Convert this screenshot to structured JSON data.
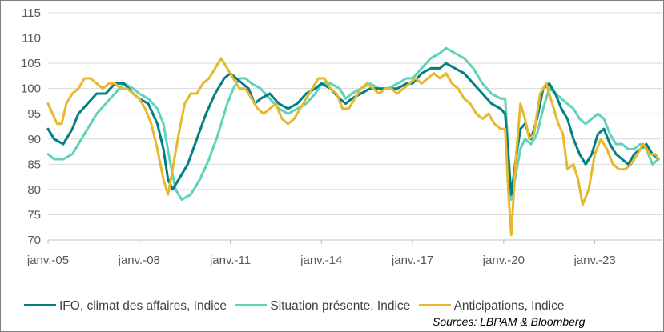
{
  "chart_data": {
    "type": "line",
    "title": "",
    "xlabel": "",
    "ylabel": "",
    "ylim": [
      70,
      115
    ],
    "yticks": [
      70,
      75,
      80,
      85,
      90,
      95,
      100,
      105,
      110,
      115
    ],
    "xlim": [
      2005.0,
      2025.2
    ],
    "xticks": [
      {
        "year": 2005,
        "label": "janv.-05"
      },
      {
        "year": 2008,
        "label": "janv.-08"
      },
      {
        "year": 2011,
        "label": "janv.-11"
      },
      {
        "year": 2014,
        "label": "janv.-14"
      },
      {
        "year": 2017,
        "label": "janv.-17"
      },
      {
        "year": 2020,
        "label": "janv.-20"
      },
      {
        "year": 2023,
        "label": "janv.-23"
      }
    ],
    "grid": true,
    "source": "Sources: LBPAM & Bloomberg",
    "series": [
      {
        "name": "IFO, climat des affaires,  Indice",
        "color": "#008080",
        "points": [
          [
            2005.0,
            92
          ],
          [
            2005.2,
            90
          ],
          [
            2005.5,
            89
          ],
          [
            2005.8,
            92
          ],
          [
            2006.0,
            95
          ],
          [
            2006.3,
            97
          ],
          [
            2006.6,
            99
          ],
          [
            2006.9,
            99
          ],
          [
            2007.2,
            101
          ],
          [
            2007.5,
            101
          ],
          [
            2007.8,
            99
          ],
          [
            2008.0,
            98
          ],
          [
            2008.3,
            97
          ],
          [
            2008.6,
            93
          ],
          [
            2008.8,
            88
          ],
          [
            2008.95,
            82
          ],
          [
            2009.1,
            80
          ],
          [
            2009.3,
            82
          ],
          [
            2009.6,
            85
          ],
          [
            2009.9,
            90
          ],
          [
            2010.2,
            95
          ],
          [
            2010.5,
            99
          ],
          [
            2010.8,
            102
          ],
          [
            2011.0,
            103
          ],
          [
            2011.2,
            102
          ],
          [
            2011.4,
            101
          ],
          [
            2011.6,
            100
          ],
          [
            2011.8,
            97
          ],
          [
            2012.0,
            98
          ],
          [
            2012.3,
            99
          ],
          [
            2012.6,
            97
          ],
          [
            2012.9,
            96
          ],
          [
            2013.2,
            97
          ],
          [
            2013.5,
            99
          ],
          [
            2013.8,
            100
          ],
          [
            2014.0,
            101
          ],
          [
            2014.3,
            100
          ],
          [
            2014.6,
            98
          ],
          [
            2014.8,
            97
          ],
          [
            2015.0,
            98
          ],
          [
            2015.3,
            99
          ],
          [
            2015.6,
            100
          ],
          [
            2015.9,
            100
          ],
          [
            2016.2,
            100
          ],
          [
            2016.5,
            100
          ],
          [
            2016.8,
            101
          ],
          [
            2017.0,
            101
          ],
          [
            2017.3,
            103
          ],
          [
            2017.6,
            104
          ],
          [
            2017.9,
            104
          ],
          [
            2018.1,
            105
          ],
          [
            2018.4,
            104
          ],
          [
            2018.7,
            103
          ],
          [
            2019.0,
            101
          ],
          [
            2019.3,
            99
          ],
          [
            2019.6,
            97
          ],
          [
            2019.9,
            96
          ],
          [
            2020.05,
            95
          ],
          [
            2020.25,
            79
          ],
          [
            2020.4,
            86
          ],
          [
            2020.55,
            92
          ],
          [
            2020.7,
            93
          ],
          [
            2020.9,
            90
          ],
          [
            2021.1,
            94
          ],
          [
            2021.3,
            100
          ],
          [
            2021.5,
            101
          ],
          [
            2021.7,
            99
          ],
          [
            2021.9,
            96
          ],
          [
            2022.1,
            94
          ],
          [
            2022.3,
            90
          ],
          [
            2022.5,
            87
          ],
          [
            2022.7,
            85
          ],
          [
            2022.9,
            87
          ],
          [
            2023.1,
            91
          ],
          [
            2023.3,
            92
          ],
          [
            2023.5,
            89
          ],
          [
            2023.7,
            87
          ],
          [
            2023.9,
            86
          ],
          [
            2024.1,
            85
          ],
          [
            2024.3,
            87
          ],
          [
            2024.5,
            88
          ],
          [
            2024.7,
            89
          ],
          [
            2024.9,
            87
          ],
          [
            2025.1,
            86
          ]
        ]
      },
      {
        "name": "Situation présente, Indice",
        "color": "#5fd3b9",
        "points": [
          [
            2005.0,
            87
          ],
          [
            2005.2,
            86
          ],
          [
            2005.5,
            86
          ],
          [
            2005.8,
            87
          ],
          [
            2006.0,
            89
          ],
          [
            2006.3,
            92
          ],
          [
            2006.6,
            95
          ],
          [
            2006.9,
            97
          ],
          [
            2007.2,
            99
          ],
          [
            2007.5,
            101
          ],
          [
            2007.8,
            100
          ],
          [
            2008.0,
            99
          ],
          [
            2008.3,
            98
          ],
          [
            2008.6,
            96
          ],
          [
            2008.8,
            93
          ],
          [
            2009.0,
            86
          ],
          [
            2009.2,
            80
          ],
          [
            2009.4,
            78
          ],
          [
            2009.7,
            79
          ],
          [
            2010.0,
            82
          ],
          [
            2010.3,
            86
          ],
          [
            2010.6,
            91
          ],
          [
            2010.9,
            97
          ],
          [
            2011.1,
            100
          ],
          [
            2011.3,
            102
          ],
          [
            2011.5,
            102
          ],
          [
            2011.7,
            101
          ],
          [
            2012.0,
            100
          ],
          [
            2012.3,
            98
          ],
          [
            2012.6,
            96
          ],
          [
            2012.9,
            95
          ],
          [
            2013.2,
            96
          ],
          [
            2013.5,
            97
          ],
          [
            2013.8,
            99
          ],
          [
            2014.0,
            101
          ],
          [
            2014.3,
            101
          ],
          [
            2014.6,
            100
          ],
          [
            2014.8,
            98
          ],
          [
            2015.0,
            99
          ],
          [
            2015.3,
            100
          ],
          [
            2015.6,
            101
          ],
          [
            2015.9,
            100
          ],
          [
            2016.2,
            100
          ],
          [
            2016.5,
            101
          ],
          [
            2016.8,
            102
          ],
          [
            2017.0,
            102
          ],
          [
            2017.3,
            104
          ],
          [
            2017.6,
            106
          ],
          [
            2017.9,
            107
          ],
          [
            2018.1,
            108
          ],
          [
            2018.4,
            107
          ],
          [
            2018.7,
            106
          ],
          [
            2019.0,
            104
          ],
          [
            2019.3,
            101
          ],
          [
            2019.6,
            99
          ],
          [
            2019.9,
            98
          ],
          [
            2020.05,
            98
          ],
          [
            2020.25,
            78
          ],
          [
            2020.4,
            83
          ],
          [
            2020.55,
            88
          ],
          [
            2020.7,
            90
          ],
          [
            2020.9,
            89
          ],
          [
            2021.1,
            91
          ],
          [
            2021.3,
            96
          ],
          [
            2021.5,
            100
          ],
          [
            2021.7,
            99
          ],
          [
            2021.9,
            98
          ],
          [
            2022.1,
            97
          ],
          [
            2022.3,
            96
          ],
          [
            2022.5,
            94
          ],
          [
            2022.7,
            93
          ],
          [
            2022.9,
            94
          ],
          [
            2023.1,
            95
          ],
          [
            2023.3,
            94
          ],
          [
            2023.5,
            91
          ],
          [
            2023.7,
            89
          ],
          [
            2023.9,
            89
          ],
          [
            2024.1,
            88
          ],
          [
            2024.3,
            88
          ],
          [
            2024.5,
            89
          ],
          [
            2024.7,
            88
          ],
          [
            2024.9,
            85
          ],
          [
            2025.1,
            86
          ]
        ]
      },
      {
        "name": "Anticipations, Indice",
        "color": "#e6b82e",
        "points": [
          [
            2005.0,
            97
          ],
          [
            2005.15,
            95
          ],
          [
            2005.3,
            93
          ],
          [
            2005.45,
            93
          ],
          [
            2005.6,
            97
          ],
          [
            2005.8,
            99
          ],
          [
            2006.0,
            100
          ],
          [
            2006.2,
            102
          ],
          [
            2006.4,
            102
          ],
          [
            2006.6,
            101
          ],
          [
            2006.8,
            100
          ],
          [
            2007.0,
            101
          ],
          [
            2007.2,
            101
          ],
          [
            2007.4,
            100
          ],
          [
            2007.6,
            100
          ],
          [
            2007.8,
            99
          ],
          [
            2008.0,
            98
          ],
          [
            2008.2,
            96
          ],
          [
            2008.4,
            93
          ],
          [
            2008.6,
            88
          ],
          [
            2008.8,
            82
          ],
          [
            2008.95,
            79
          ],
          [
            2009.1,
            84
          ],
          [
            2009.3,
            91
          ],
          [
            2009.5,
            97
          ],
          [
            2009.7,
            99
          ],
          [
            2009.9,
            99
          ],
          [
            2010.1,
            101
          ],
          [
            2010.3,
            102
          ],
          [
            2010.5,
            104
          ],
          [
            2010.7,
            106
          ],
          [
            2010.9,
            104
          ],
          [
            2011.1,
            102
          ],
          [
            2011.3,
            100
          ],
          [
            2011.5,
            100
          ],
          [
            2011.7,
            98
          ],
          [
            2011.9,
            96
          ],
          [
            2012.1,
            95
          ],
          [
            2012.3,
            96
          ],
          [
            2012.5,
            97
          ],
          [
            2012.7,
            94
          ],
          [
            2012.9,
            93
          ],
          [
            2013.1,
            94
          ],
          [
            2013.3,
            96
          ],
          [
            2013.5,
            98
          ],
          [
            2013.7,
            100
          ],
          [
            2013.9,
            102
          ],
          [
            2014.1,
            102
          ],
          [
            2014.3,
            100
          ],
          [
            2014.5,
            99
          ],
          [
            2014.7,
            96
          ],
          [
            2014.9,
            96
          ],
          [
            2015.1,
            98
          ],
          [
            2015.3,
            100
          ],
          [
            2015.5,
            101
          ],
          [
            2015.7,
            100
          ],
          [
            2015.9,
            99
          ],
          [
            2016.1,
            100
          ],
          [
            2016.3,
            100
          ],
          [
            2016.5,
            99
          ],
          [
            2016.7,
            100
          ],
          [
            2016.9,
            101
          ],
          [
            2017.1,
            102
          ],
          [
            2017.3,
            101
          ],
          [
            2017.5,
            102
          ],
          [
            2017.7,
            103
          ],
          [
            2017.9,
            102
          ],
          [
            2018.1,
            103
          ],
          [
            2018.3,
            101
          ],
          [
            2018.5,
            100
          ],
          [
            2018.7,
            98
          ],
          [
            2018.9,
            97
          ],
          [
            2019.1,
            95
          ],
          [
            2019.3,
            94
          ],
          [
            2019.5,
            95
          ],
          [
            2019.7,
            93
          ],
          [
            2019.9,
            92
          ],
          [
            2020.05,
            92
          ],
          [
            2020.15,
            80
          ],
          [
            2020.25,
            71
          ],
          [
            2020.4,
            86
          ],
          [
            2020.55,
            97
          ],
          [
            2020.7,
            94
          ],
          [
            2020.85,
            90
          ],
          [
            2021.0,
            91
          ],
          [
            2021.2,
            99
          ],
          [
            2021.4,
            101
          ],
          [
            2021.6,
            97
          ],
          [
            2021.8,
            93
          ],
          [
            2021.95,
            91
          ],
          [
            2022.1,
            84
          ],
          [
            2022.3,
            85
          ],
          [
            2022.45,
            82
          ],
          [
            2022.6,
            77
          ],
          [
            2022.8,
            80
          ],
          [
            2023.0,
            87
          ],
          [
            2023.2,
            90
          ],
          [
            2023.4,
            88
          ],
          [
            2023.6,
            85
          ],
          [
            2023.8,
            84
          ],
          [
            2024.0,
            84
          ],
          [
            2024.2,
            85
          ],
          [
            2024.4,
            87
          ],
          [
            2024.6,
            89
          ],
          [
            2024.8,
            87
          ],
          [
            2025.0,
            87
          ],
          [
            2025.1,
            86
          ]
        ]
      }
    ]
  }
}
